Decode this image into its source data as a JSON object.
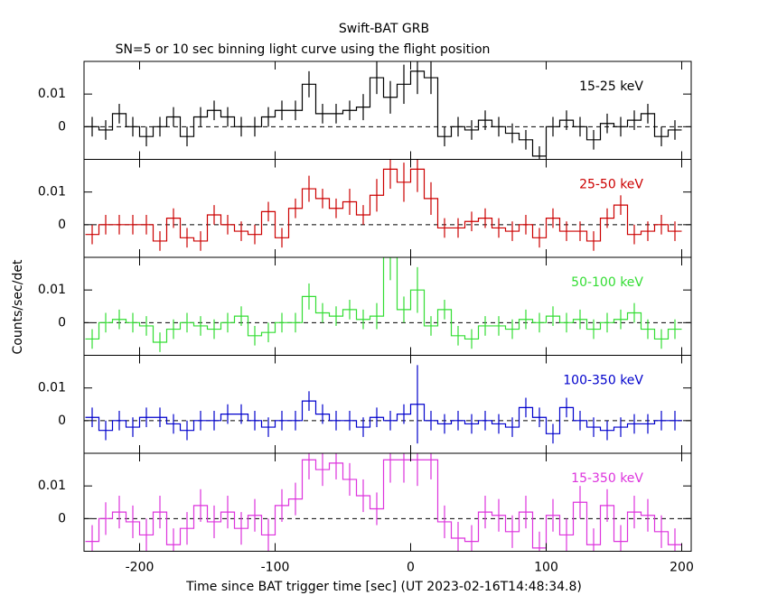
{
  "chart_data": {
    "type": "step",
    "title": "Swift-BAT GRB",
    "subtitle": "SN=5 or 10 sec binning light curve using the flight position",
    "xlabel": "Time since BAT trigger time [sec] (UT 2023-02-16T14:48:34.8)",
    "ylabel": "Counts/sec/det",
    "xlim": [
      -241,
      207
    ],
    "xticks": [
      -200,
      -100,
      0,
      100,
      200
    ],
    "ylim": [
      -0.01,
      0.02
    ],
    "yticks": [
      0,
      0.01
    ],
    "x": [
      -235,
      -225,
      -215,
      -205,
      -195,
      -185,
      -175,
      -165,
      -155,
      -145,
      -135,
      -125,
      -115,
      -105,
      -95,
      -85,
      -75,
      -65,
      -55,
      -45,
      -35,
      -25,
      -15,
      -5,
      5,
      15,
      25,
      35,
      45,
      55,
      65,
      75,
      85,
      95,
      105,
      115,
      125,
      135,
      145,
      155,
      165,
      175,
      185,
      195
    ],
    "series": [
      {
        "name": "15-25 keV",
        "color": "#000000",
        "values": [
          0,
          -0.001,
          0.004,
          0,
          -0.003,
          0,
          0.003,
          -0.003,
          0.003,
          0.005,
          0.003,
          0,
          0,
          0.003,
          0.005,
          0.005,
          0.013,
          0.004,
          0.004,
          0.005,
          0.006,
          0.015,
          0.009,
          0.013,
          0.017,
          0.015,
          -0.003,
          0,
          -0.001,
          0.002,
          0,
          -0.002,
          -0.004,
          -0.009,
          0,
          0.002,
          0,
          -0.004,
          0.001,
          0,
          0.002,
          0.004,
          -0.003,
          -0.001
        ],
        "errors": [
          0.003,
          0.003,
          0.003,
          0.003,
          0.003,
          0.003,
          0.003,
          0.003,
          0.003,
          0.003,
          0.003,
          0.003,
          0.003,
          0.003,
          0.003,
          0.003,
          0.004,
          0.003,
          0.003,
          0.003,
          0.004,
          0.005,
          0.005,
          0.006,
          0.007,
          0.005,
          0.003,
          0.003,
          0.003,
          0.003,
          0.003,
          0.003,
          0.003,
          0.003,
          0.003,
          0.003,
          0.003,
          0.003,
          0.003,
          0.003,
          0.003,
          0.003,
          0.003,
          0.003
        ]
      },
      {
        "name": "25-50 keV",
        "color": "#cc0000",
        "values": [
          -0.003,
          0,
          0,
          0,
          0,
          -0.005,
          0.002,
          -0.004,
          -0.005,
          0.003,
          0,
          -0.002,
          -0.003,
          0.004,
          -0.004,
          0.005,
          0.011,
          0.008,
          0.005,
          0.007,
          0.003,
          0.009,
          0.017,
          0.013,
          0.017,
          0.008,
          -0.001,
          -0.001,
          0.001,
          0.002,
          -0.001,
          -0.002,
          0,
          -0.004,
          0.002,
          -0.002,
          -0.002,
          -0.005,
          0.002,
          0.006,
          -0.003,
          -0.002,
          0,
          -0.002
        ],
        "errors": [
          0.003,
          0.003,
          0.003,
          0.003,
          0.003,
          0.003,
          0.003,
          0.003,
          0.003,
          0.003,
          0.003,
          0.003,
          0.003,
          0.003,
          0.003,
          0.003,
          0.004,
          0.003,
          0.003,
          0.004,
          0.003,
          0.005,
          0.006,
          0.006,
          0.007,
          0.005,
          0.003,
          0.003,
          0.003,
          0.003,
          0.003,
          0.003,
          0.003,
          0.003,
          0.003,
          0.003,
          0.003,
          0.003,
          0.003,
          0.003,
          0.003,
          0.003,
          0.003,
          0.003
        ]
      },
      {
        "name": "50-100 keV",
        "color": "#33dd33",
        "values": [
          -0.005,
          0,
          0.001,
          0,
          -0.001,
          -0.006,
          -0.002,
          0,
          -0.001,
          -0.002,
          0,
          0.002,
          -0.004,
          -0.003,
          0,
          0,
          0.008,
          0.003,
          0.002,
          0.004,
          0.001,
          0.002,
          0.02,
          0.004,
          0.01,
          -0.001,
          0.004,
          -0.004,
          -0.005,
          -0.001,
          -0.001,
          -0.002,
          0.001,
          0,
          0.002,
          0,
          0.001,
          -0.002,
          0,
          0.001,
          0.003,
          -0.002,
          -0.005,
          -0.002
        ],
        "errors": [
          0.003,
          0.003,
          0.003,
          0.003,
          0.003,
          0.003,
          0.003,
          0.003,
          0.003,
          0.003,
          0.003,
          0.003,
          0.003,
          0.003,
          0.003,
          0.003,
          0.004,
          0.003,
          0.003,
          0.003,
          0.003,
          0.004,
          0.007,
          0.004,
          0.007,
          0.003,
          0.003,
          0.003,
          0.003,
          0.003,
          0.003,
          0.003,
          0.003,
          0.003,
          0.003,
          0.003,
          0.003,
          0.003,
          0.003,
          0.003,
          0.003,
          0.003,
          0.003,
          0.003
        ]
      },
      {
        "name": "100-350 keV",
        "color": "#0000cc",
        "values": [
          0.001,
          -0.003,
          0,
          -0.002,
          0.001,
          0.001,
          -0.001,
          -0.003,
          0,
          0,
          0.002,
          0.002,
          0,
          -0.002,
          0,
          0,
          0.006,
          0.002,
          0,
          0,
          -0.002,
          0.001,
          0,
          0.002,
          0.005,
          0,
          -0.001,
          0,
          -0.001,
          0,
          -0.001,
          -0.002,
          0.004,
          0.001,
          -0.004,
          0.004,
          0,
          -0.002,
          -0.003,
          -0.002,
          -0.001,
          -0.001,
          0,
          0
        ],
        "errors": [
          0.003,
          0.003,
          0.003,
          0.003,
          0.003,
          0.003,
          0.003,
          0.003,
          0.003,
          0.003,
          0.003,
          0.003,
          0.003,
          0.003,
          0.003,
          0.003,
          0.003,
          0.003,
          0.003,
          0.003,
          0.003,
          0.003,
          0.003,
          0.003,
          0.012,
          0.003,
          0.003,
          0.003,
          0.003,
          0.003,
          0.003,
          0.003,
          0.003,
          0.003,
          0.003,
          0.003,
          0.003,
          0.003,
          0.003,
          0.003,
          0.003,
          0.003,
          0.003,
          0.003
        ]
      },
      {
        "name": "15-350 keV",
        "color": "#dd33dd",
        "values": [
          -0.007,
          0,
          0.002,
          -0.001,
          -0.005,
          0.002,
          -0.008,
          -0.003,
          0.004,
          -0.001,
          0.002,
          -0.003,
          0.001,
          -0.005,
          0.004,
          0.006,
          0.018,
          0.015,
          0.017,
          0.012,
          0.007,
          0.003,
          0.018,
          0.018,
          0.018,
          0.018,
          -0.001,
          -0.006,
          -0.007,
          0.002,
          0.001,
          -0.004,
          0.002,
          -0.009,
          0.001,
          -0.005,
          0.005,
          -0.008,
          0.004,
          -0.007,
          0.002,
          0.001,
          -0.004,
          -0.008
        ],
        "errors": [
          0.005,
          0.005,
          0.005,
          0.005,
          0.005,
          0.005,
          0.005,
          0.005,
          0.005,
          0.005,
          0.005,
          0.005,
          0.005,
          0.005,
          0.005,
          0.005,
          0.006,
          0.005,
          0.005,
          0.005,
          0.005,
          0.005,
          0.007,
          0.007,
          0.008,
          0.006,
          0.005,
          0.005,
          0.005,
          0.005,
          0.005,
          0.005,
          0.005,
          0.005,
          0.005,
          0.005,
          0.005,
          0.005,
          0.005,
          0.005,
          0.005,
          0.005,
          0.005,
          0.005
        ]
      }
    ]
  }
}
